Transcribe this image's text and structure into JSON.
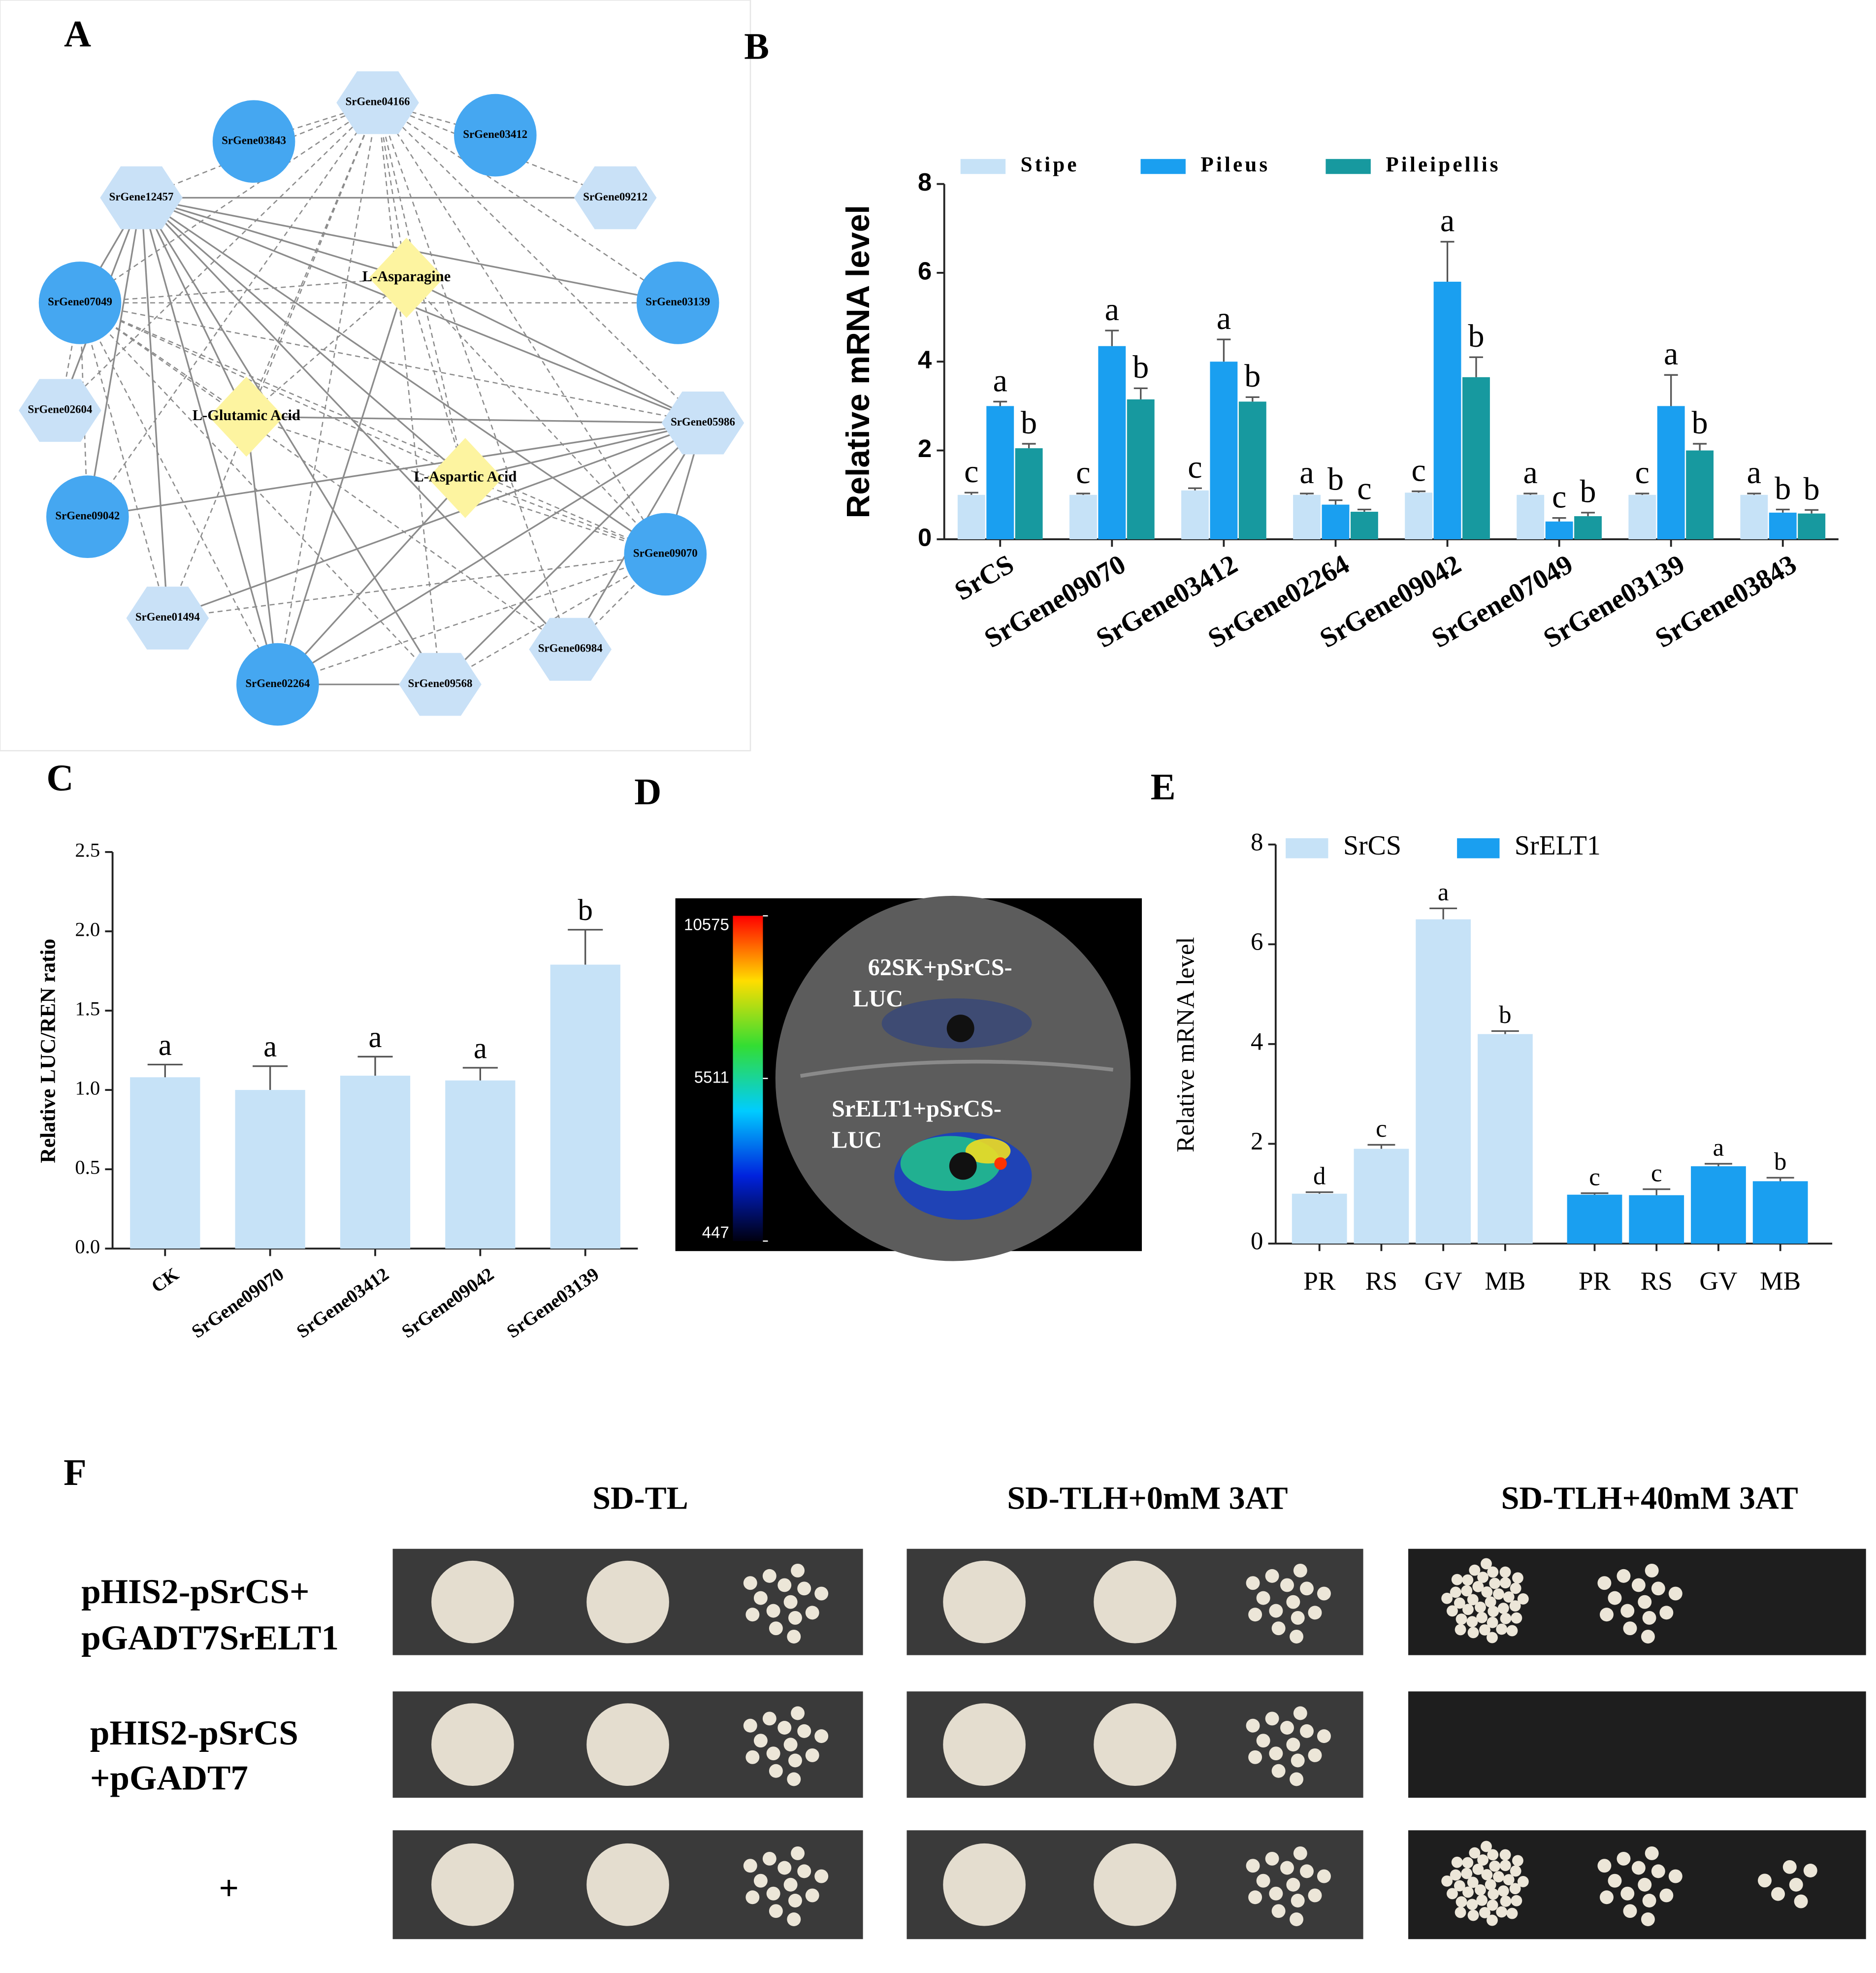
{
  "panel_labels": [
    "A",
    "B",
    "C",
    "D",
    "E",
    "F"
  ],
  "network": {
    "nodes": [
      {
        "label": "SrGene04166",
        "shape": "hexagon"
      },
      {
        "label": "SrGene03843",
        "shape": "circle"
      },
      {
        "label": "SrGene03412",
        "shape": "circle"
      },
      {
        "label": "SrGene12457",
        "shape": "hexagon"
      },
      {
        "label": "SrGene09212",
        "shape": "hexagon"
      },
      {
        "label": "SrGene07049",
        "shape": "circle"
      },
      {
        "label": "SrGene03139",
        "shape": "circle"
      },
      {
        "label": "SrGene02604",
        "shape": "hexagon"
      },
      {
        "label": "SrGene05986",
        "shape": "hexagon"
      },
      {
        "label": "SrGene09042",
        "shape": "circle"
      },
      {
        "label": "SrGene09070",
        "shape": "circle"
      },
      {
        "label": "SrGene01494",
        "shape": "hexagon"
      },
      {
        "label": "SrGene06984",
        "shape": "hexagon"
      },
      {
        "label": "SrGene02264",
        "shape": "circle"
      },
      {
        "label": "SrGene09568",
        "shape": "hexagon"
      },
      {
        "label": "L-Asparagine",
        "shape": "diamond"
      },
      {
        "label": "L-Glutamic Acid",
        "shape": "diamond"
      },
      {
        "label": "L-Aspartic Acid",
        "shape": "diamond"
      }
    ]
  },
  "chart_data": [
    {
      "type": "bar",
      "y_label": "Relative mRNA level",
      "categories": [
        "SrCS",
        "SrGene09070",
        "SrGene03412",
        "SrGene02264",
        "SrGene09042",
        "SrGene07049",
        "SrGene03139",
        "SrGene03843"
      ],
      "series": [
        {
          "name": "Stipe",
          "color": "#c6e2f7",
          "values": [
            1.0,
            1.0,
            1.1,
            1.0,
            1.05,
            1.0,
            1.0,
            1.0
          ],
          "errors": [
            0.05,
            0.03,
            0.05,
            0.03,
            0.03,
            0.03,
            0.03,
            0.03
          ],
          "letters": [
            "c",
            "c",
            "c",
            "a",
            "c",
            "a",
            "c",
            "a"
          ]
        },
        {
          "name": "Pileus",
          "color": "#1a9ff0",
          "values": [
            3.0,
            4.35,
            4.0,
            0.78,
            5.8,
            0.4,
            3.0,
            0.6
          ],
          "errors": [
            0.1,
            0.35,
            0.5,
            0.1,
            0.9,
            0.08,
            0.7,
            0.07
          ],
          "letters": [
            "a",
            "a",
            "a",
            "b",
            "a",
            "c",
            "a",
            "b"
          ]
        },
        {
          "name": "Pileipellis",
          "color": "#17999f",
          "values": [
            2.05,
            3.15,
            3.1,
            0.62,
            3.65,
            0.52,
            2.0,
            0.58
          ],
          "errors": [
            0.1,
            0.25,
            0.1,
            0.05,
            0.45,
            0.08,
            0.15,
            0.08
          ],
          "letters": [
            "b",
            "b",
            "b",
            "c",
            "b",
            "b",
            "b",
            "b"
          ]
        }
      ],
      "ylim": [
        0,
        8
      ],
      "yticks": [
        0,
        2,
        4,
        6,
        8
      ],
      "legend": "top"
    },
    {
      "type": "bar",
      "y_label": "Relative LUC/REN ratio",
      "categories": [
        "CK",
        "SrGene09070",
        "SrGene03412",
        "SrGene09042",
        "SrGene03139"
      ],
      "series": [
        {
          "color": "#c6e2f7",
          "values": [
            1.08,
            1.0,
            1.09,
            1.06,
            1.79
          ],
          "errors": [
            0.08,
            0.15,
            0.12,
            0.08,
            0.22
          ],
          "letters": [
            "a",
            "a",
            "a",
            "a",
            "b"
          ]
        }
      ],
      "ylim": [
        0,
        2.5
      ],
      "yticks": [
        {
          "value": 0,
          "label": "0.0"
        },
        0.5,
        {
          "value": 1,
          "label": "1.0"
        },
        1.5,
        {
          "value": 2,
          "label": "2.0"
        },
        2.5
      ]
    },
    {
      "type": "bar",
      "y_label": "Relative mRNA level",
      "categories": [
        "PR",
        "RS",
        "GV",
        "MB",
        "PR",
        "RS",
        "GV",
        "MB"
      ],
      "series": [
        {
          "name": "SrCS",
          "color": "#c6e2f7",
          "values": [
            1.0,
            1.9,
            6.5,
            4.2,
            null,
            null,
            null,
            null
          ],
          "errors": [
            0.03,
            0.08,
            0.22,
            0.06,
            null,
            null,
            null,
            null
          ],
          "letters": [
            "d",
            "c",
            "a",
            "b",
            null,
            null,
            null,
            null
          ]
        },
        {
          "name": "SrELT1",
          "color": "#1a9ff0",
          "values": [
            null,
            null,
            null,
            null,
            0.98,
            0.97,
            1.55,
            1.25
          ],
          "errors": [
            null,
            null,
            null,
            null,
            0.03,
            0.12,
            0.05,
            0.07
          ],
          "letters": [
            null,
            null,
            null,
            null,
            "c",
            "c",
            "a",
            "b"
          ]
        }
      ],
      "ylim": [
        0,
        8
      ],
      "yticks": [
        0,
        2,
        4,
        6,
        8
      ],
      "legend": "top"
    }
  ],
  "luciferase_image": {
    "colorbar_ticks": [
      10575,
      5511,
      447
    ],
    "labels": [
      "62SK+pSrCS-",
      "LUC",
      "SrELT1+pSrCS-",
      "LUC"
    ]
  },
  "yeast_one_hybrid": {
    "columns": [
      "SD-TL",
      "SD-TLH+0mM 3AT",
      "SD-TLH+40mM 3AT"
    ],
    "rows": [
      [
        "pHIS2-pSrCS+",
        "pGADT7SrELT1"
      ],
      [
        "pHIS2-pSrCS",
        "+pGADT7"
      ],
      [
        "+"
      ]
    ]
  }
}
